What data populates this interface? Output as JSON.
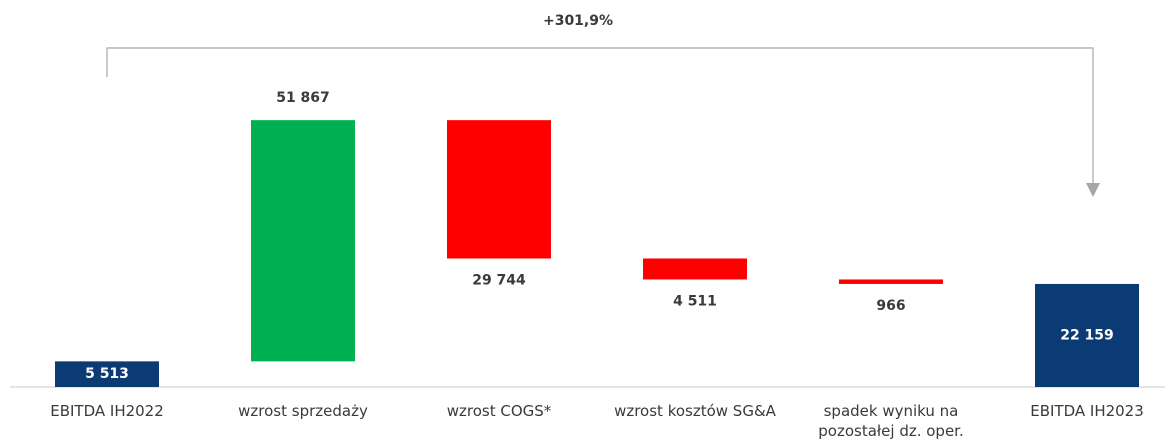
{
  "chart_data": {
    "type": "waterfall",
    "annotation": "+301,9%",
    "categories": [
      "EBITDA IH2022",
      "wzrost sprzedaży",
      "wzrost COGS*",
      "wzrost kosztów SG&A",
      "spadek wyniku na pozostałej dz. oper.",
      "EBITDA IH2023"
    ],
    "values": [
      5513,
      51867,
      -29744,
      -4511,
      -966,
      22159
    ],
    "value_labels": [
      "5 513",
      "51 867",
      "29 744",
      "4 511",
      "966",
      "22 159"
    ],
    "colors": [
      "#0b3a75",
      "#00b050",
      "#ff0000",
      "#ff0000",
      "#ff0000",
      "#0b3a75"
    ],
    "ylim": [
      0,
      83000
    ]
  }
}
